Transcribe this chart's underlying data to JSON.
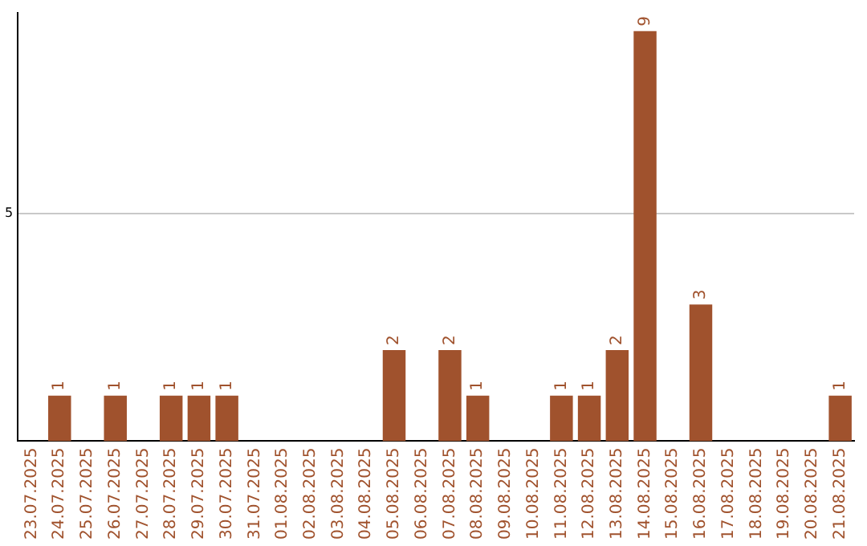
{
  "chart_data": {
    "type": "bar",
    "categories": [
      "23.07.2025",
      "24.07.2025",
      "25.07.2025",
      "26.07.2025",
      "27.07.2025",
      "28.07.2025",
      "29.07.2025",
      "30.07.2025",
      "31.07.2025",
      "01.08.2025",
      "02.08.2025",
      "03.08.2025",
      "04.08.2025",
      "05.08.2025",
      "06.08.2025",
      "07.08.2025",
      "08.08.2025",
      "09.08.2025",
      "10.08.2025",
      "11.08.2025",
      "12.08.2025",
      "13.08.2025",
      "14.08.2025",
      "15.08.2025",
      "16.08.2025",
      "17.08.2025",
      "18.08.2025",
      "19.08.2025",
      "20.08.2025",
      "21.08.2025"
    ],
    "values": [
      0,
      1,
      0,
      1,
      0,
      1,
      1,
      1,
      0,
      0,
      0,
      0,
      0,
      2,
      0,
      2,
      1,
      0,
      0,
      1,
      1,
      2,
      9,
      0,
      3,
      0,
      0,
      0,
      0,
      1
    ],
    "value_labels": [
      null,
      "1",
      null,
      "1",
      null,
      "1",
      "1",
      "1",
      null,
      null,
      null,
      null,
      null,
      "2",
      null,
      "2",
      "1",
      null,
      null,
      "1",
      "1",
      "2",
      "9",
      null,
      "3",
      null,
      null,
      null,
      null,
      "1"
    ],
    "color": "#a0522d",
    "ylim": [
      0,
      9.4
    ],
    "yticks": [
      5
    ],
    "grid": "y",
    "legend": false
  }
}
